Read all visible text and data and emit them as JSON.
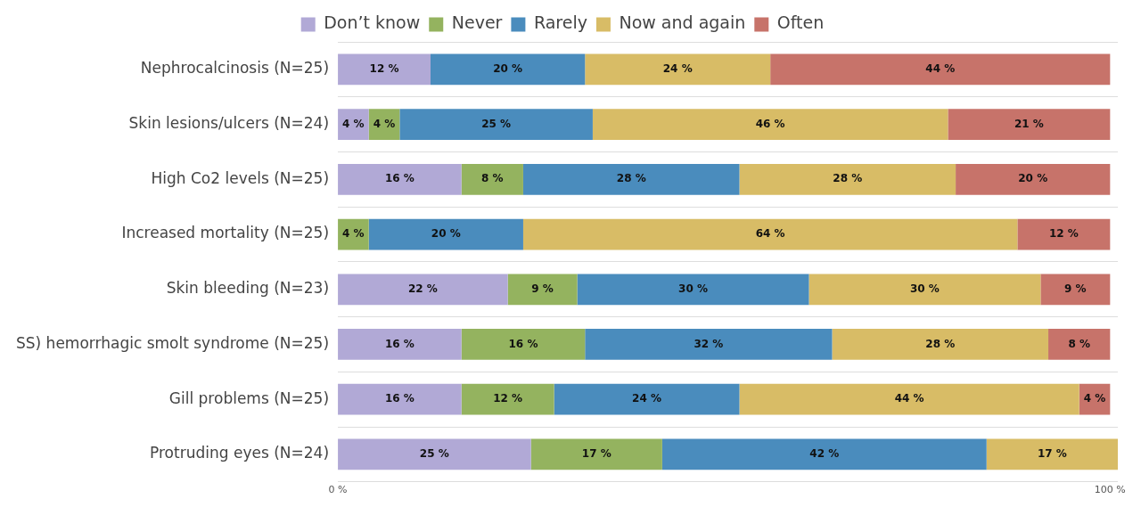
{
  "chart_data": {
    "type": "bar",
    "orientation": "horizontal",
    "stacked": true,
    "legend": "top",
    "categories": [
      "Nephrocalcinosis (N=25)",
      "Skin lesions/ulcers (N=24)",
      "High Co2 levels (N=25)",
      "Increased mortality (N=25)",
      "Skin bleeding (N=23)",
      "SS) hemorrhagic smolt syndrome (N=25)",
      "Gill problems (N=25)",
      "Protruding eyes (N=24)"
    ],
    "xlim": [
      0,
      101
    ],
    "xticks": [
      {
        "value": 0,
        "label": "0 %"
      },
      {
        "value": 100,
        "label": "100 %"
      }
    ],
    "series": [
      {
        "name": "Don’t know",
        "color": "#b1a9d6",
        "values": [
          12,
          4,
          16,
          0,
          22,
          16,
          16,
          25
        ],
        "value_labels": [
          "12 %",
          "4 %",
          "16 %",
          null,
          "22 %",
          "16 %",
          "16 %",
          "25 %"
        ]
      },
      {
        "name": "Never",
        "color": "#94b35f",
        "values": [
          0,
          4,
          8,
          4,
          9,
          16,
          12,
          17
        ],
        "value_labels": [
          null,
          "4 %",
          "8 %",
          "4 %",
          "9 %",
          "16 %",
          "12 %",
          "17 %"
        ]
      },
      {
        "name": "Rarely",
        "color": "#4a8cbd",
        "values": [
          20,
          25,
          28,
          20,
          30,
          32,
          24,
          42
        ],
        "value_labels": [
          "20 %",
          "25 %",
          "28 %",
          "20 %",
          "30 %",
          "32 %",
          "24 %",
          "42 %"
        ]
      },
      {
        "name": "Now and again",
        "color": "#d8bc66",
        "values": [
          24,
          46,
          28,
          64,
          30,
          28,
          44,
          17
        ],
        "value_labels": [
          "24 %",
          "46 %",
          "28 %",
          "64 %",
          "30 %",
          "28 %",
          "44 %",
          "17 %"
        ]
      },
      {
        "name": "Often",
        "color": "#c7736a",
        "values": [
          44,
          21,
          20,
          12,
          9,
          8,
          4,
          0
        ],
        "value_labels": [
          "44 %",
          "21 %",
          "20 %",
          "12 %",
          "9 %",
          "8 %",
          "4 %",
          null
        ]
      }
    ]
  }
}
